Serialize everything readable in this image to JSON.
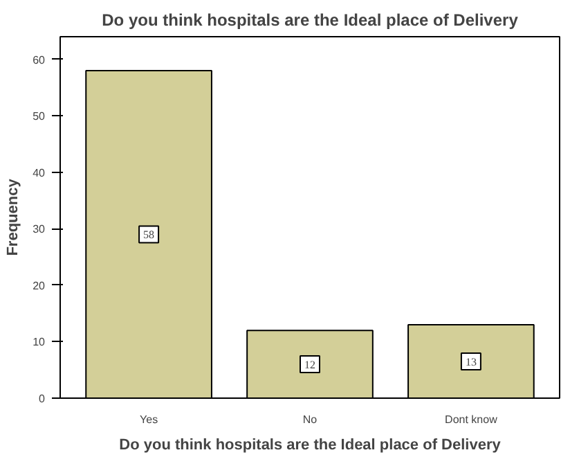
{
  "chart_data": {
    "type": "bar",
    "title": "Do you think hospitals are the Ideal place of Delivery",
    "xlabel": "Do you think hospitals are the Ideal place of Delivery",
    "ylabel": "Frequency",
    "categories": [
      "Yes",
      "No",
      "Dont know"
    ],
    "values": [
      58,
      12,
      13
    ],
    "color": "#d3cf98",
    "ylim": [
      0,
      64
    ],
    "yticks": [
      0,
      10,
      20,
      30,
      40,
      50,
      60
    ],
    "data_labels": true,
    "grid": false
  }
}
